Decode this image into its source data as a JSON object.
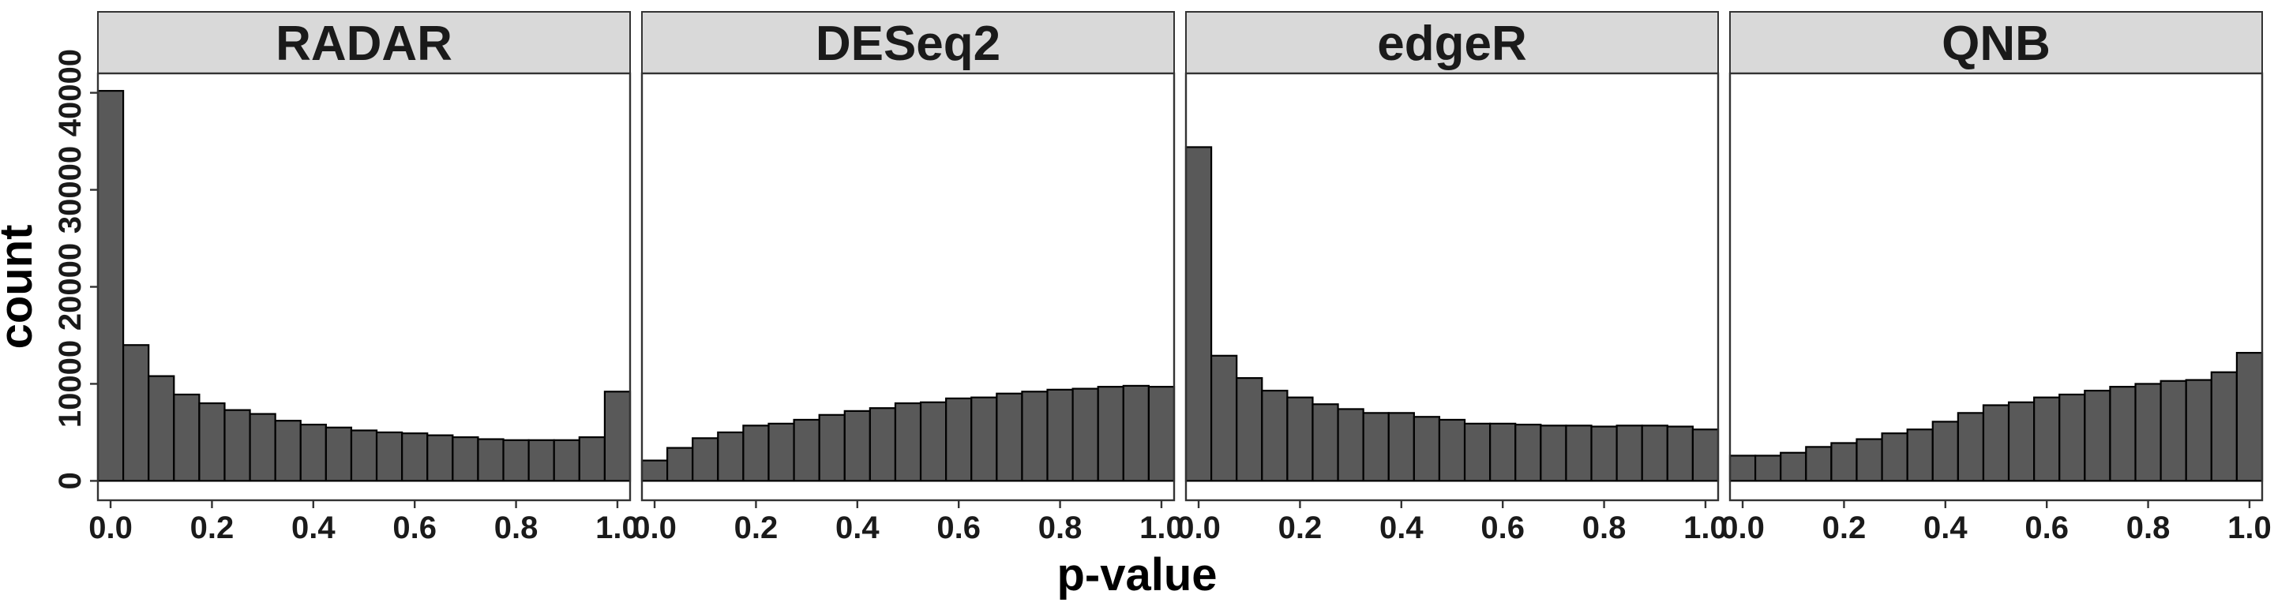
{
  "chart_data": {
    "type": "bar",
    "xlabel": "p-value",
    "ylabel": "count",
    "xlim": [
      -0.025,
      1.025
    ],
    "ylim": [
      -2000,
      42000
    ],
    "x_ticks": [
      "0.0",
      "0.2",
      "0.4",
      "0.6",
      "0.8",
      "1.0"
    ],
    "x_tick_values": [
      0.0,
      0.2,
      0.4,
      0.6,
      0.8,
      1.0
    ],
    "y_ticks": [
      "0",
      "10000",
      "20000",
      "30000",
      "40000"
    ],
    "y_tick_values": [
      0,
      10000,
      20000,
      30000,
      40000
    ],
    "bin_width": 0.05,
    "bin_centers": [
      0.0,
      0.05,
      0.1,
      0.15,
      0.2,
      0.25,
      0.3,
      0.35,
      0.4,
      0.45,
      0.5,
      0.55,
      0.6,
      0.65,
      0.7,
      0.75,
      0.8,
      0.85,
      0.9,
      0.95,
      1.0
    ],
    "grid": false,
    "bar_color": "#595959",
    "bar_outline": "#000000",
    "strip_color": "#d9d9d9",
    "panels": [
      {
        "title": "RADAR",
        "values": [
          40200,
          14000,
          10800,
          8900,
          8000,
          7300,
          6900,
          6200,
          5800,
          5500,
          5200,
          5000,
          4900,
          4700,
          4500,
          4300,
          4200,
          4200,
          4200,
          4500,
          9200
        ]
      },
      {
        "title": "DESeq2",
        "values": [
          2100,
          3400,
          4400,
          5000,
          5700,
          5900,
          6300,
          6800,
          7200,
          7500,
          8000,
          8100,
          8500,
          8600,
          9000,
          9200,
          9400,
          9500,
          9700,
          9800,
          9700
        ]
      },
      {
        "title": "edgeR",
        "values": [
          34400,
          12900,
          10600,
          9300,
          8600,
          7900,
          7400,
          7000,
          7000,
          6600,
          6300,
          5900,
          5900,
          5800,
          5700,
          5700,
          5600,
          5700,
          5700,
          5600,
          5300
        ]
      },
      {
        "title": "QNB",
        "values": [
          2600,
          2600,
          2900,
          3500,
          3900,
          4300,
          4900,
          5300,
          6100,
          7000,
          7800,
          8100,
          8600,
          8900,
          9300,
          9700,
          10000,
          10300,
          10400,
          11200,
          13200
        ]
      }
    ]
  }
}
